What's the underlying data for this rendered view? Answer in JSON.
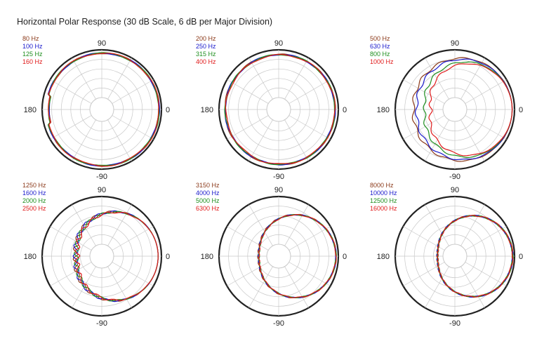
{
  "title": "Horizontal Polar Response (30 dB Scale, 6 dB per Major Division)",
  "angle_labels": {
    "top": "90",
    "left": "180",
    "right": "0",
    "bottom": "-90"
  },
  "colors": {
    "s1": "#8b3a1a",
    "s2": "#1a1acc",
    "s3": "#1f8f1f",
    "s4": "#e01b1b",
    "grid": "#c8c8c8",
    "outline": "#222222"
  },
  "chart_data": [
    {
      "type": "polar",
      "range_db": 30,
      "major_division_db": 6,
      "series": [
        {
          "name": "80 Hz",
          "color": "#8b3a1a",
          "shape": "omni",
          "level": 0.92
        },
        {
          "name": "100 Hz",
          "color": "#1a1acc",
          "shape": "omni",
          "level": 0.91
        },
        {
          "name": "125 Hz",
          "color": "#1f8f1f",
          "shape": "omni",
          "level": 0.94
        },
        {
          "name": "160 Hz",
          "color": "#e01b1b",
          "shape": "omni",
          "level": 0.9
        }
      ]
    },
    {
      "type": "polar",
      "range_db": 30,
      "major_division_db": 6,
      "series": [
        {
          "name": "200 Hz",
          "color": "#8b3a1a",
          "shape": "wide",
          "level": 0.93
        },
        {
          "name": "250 Hz",
          "color": "#1a1acc",
          "shape": "wide",
          "level": 0.91
        },
        {
          "name": "315 Hz",
          "color": "#1f8f1f",
          "shape": "wide",
          "level": 0.9
        },
        {
          "name": "400 Hz",
          "color": "#e01b1b",
          "shape": "wide",
          "level": 0.84
        }
      ]
    },
    {
      "type": "polar",
      "range_db": 30,
      "major_division_db": 6,
      "series": [
        {
          "name": "500 Hz",
          "color": "#8b3a1a",
          "shape": "cardioid",
          "level": 0.62
        },
        {
          "name": "630 Hz",
          "color": "#1a1acc",
          "shape": "cardioid",
          "level": 0.55
        },
        {
          "name": "800 Hz",
          "color": "#1f8f1f",
          "shape": "cardioid",
          "level": 0.38
        },
        {
          "name": "1000 Hz",
          "color": "#e01b1b",
          "shape": "cardioid",
          "level": 0.25
        }
      ]
    },
    {
      "type": "polar",
      "range_db": 30,
      "major_division_db": 6,
      "series": [
        {
          "name": "1250 Hz",
          "color": "#8b3a1a",
          "shape": "narrow",
          "level": 0.3
        },
        {
          "name": "1600 Hz",
          "color": "#1a1acc",
          "shape": "narrow",
          "level": 0.3
        },
        {
          "name": "2000 Hz",
          "color": "#1f8f1f",
          "shape": "narrow",
          "level": 0.28
        },
        {
          "name": "2500 Hz",
          "color": "#e01b1b",
          "shape": "narrow",
          "level": 0.26
        }
      ]
    },
    {
      "type": "polar",
      "range_db": 30,
      "major_division_db": 6,
      "series": [
        {
          "name": "3150 Hz",
          "color": "#8b3a1a",
          "shape": "narrow2",
          "level": 0.18
        },
        {
          "name": "4000 Hz",
          "color": "#1a1acc",
          "shape": "narrow2",
          "level": 0.17
        },
        {
          "name": "5000 Hz",
          "color": "#1f8f1f",
          "shape": "narrow2",
          "level": 0.16
        },
        {
          "name": "6300 Hz",
          "color": "#e01b1b",
          "shape": "narrow2",
          "level": 0.16
        }
      ]
    },
    {
      "type": "polar",
      "range_db": 30,
      "major_division_db": 6,
      "series": [
        {
          "name": "8000 Hz",
          "color": "#8b3a1a",
          "shape": "narrow3",
          "level": 0.12
        },
        {
          "name": "10000 Hz",
          "color": "#1a1acc",
          "shape": "narrow3",
          "level": 0.12
        },
        {
          "name": "12500 Hz",
          "color": "#1f8f1f",
          "shape": "narrow3",
          "level": 0.11
        },
        {
          "name": "16000 Hz",
          "color": "#e01b1b",
          "shape": "narrow3",
          "level": 0.11
        }
      ]
    }
  ]
}
